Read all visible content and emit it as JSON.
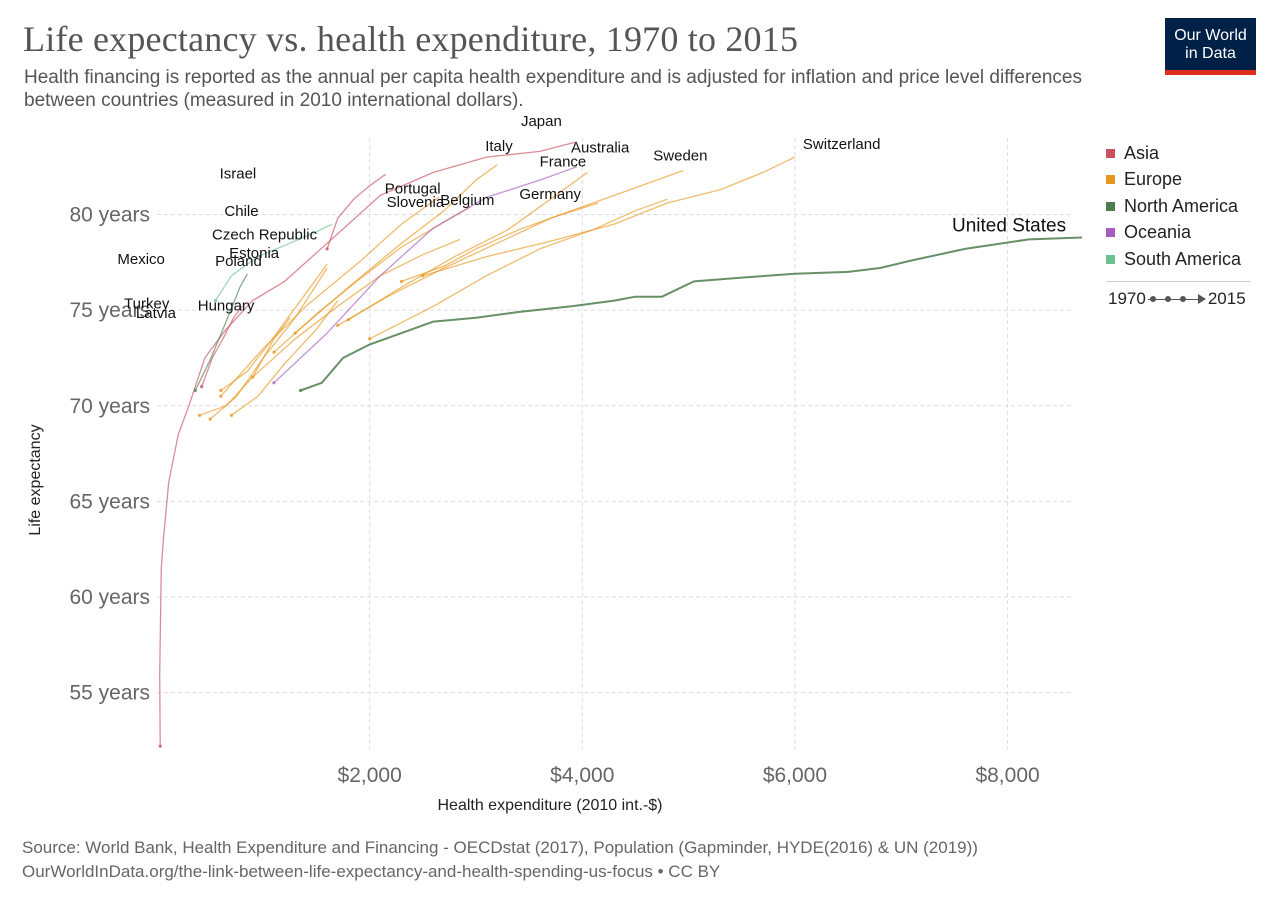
{
  "header": {
    "title": "Life expectancy vs. health expenditure, 1970 to 2015",
    "subtitle": "Health financing is reported as the annual per capita health expenditure and is adjusted for inflation and price level differences between countries (measured in 2010 international dollars).",
    "logo_line1": "Our World",
    "logo_line2": "in Data"
  },
  "legend": {
    "items": [
      {
        "label": "Asia",
        "color": "#c8505f"
      },
      {
        "label": "Europe",
        "color": "#e8961e"
      },
      {
        "label": "North America",
        "color": "#4e7d4e"
      },
      {
        "label": "Oceania",
        "color": "#a65cc0"
      },
      {
        "label": "South America",
        "color": "#6cc28f"
      }
    ],
    "timeline_start": "1970",
    "timeline_end": "2015"
  },
  "footer": {
    "source_line": "Source: World Bank, Health Expenditure and Financing - OECDstat (2017), Population (Gapminder, HYDE(2016) & UN (2019))",
    "url_line": "OurWorldInData.org/the-link-between-life-expectancy-and-health-spending-us-focus • CC BY"
  },
  "chart_data": {
    "type": "line",
    "xlabel": "Health expenditure (2010 int.-$)",
    "ylabel": "Life expectancy",
    "xlim": [
      0,
      8700
    ],
    "ylim": [
      52,
      84
    ],
    "x_ticks": [
      {
        "value": 2000,
        "label": "$2,000"
      },
      {
        "value": 4000,
        "label": "$4,000"
      },
      {
        "value": 6000,
        "label": "$6,000"
      },
      {
        "value": 8000,
        "label": "$8,000"
      }
    ],
    "y_ticks": [
      {
        "value": 55,
        "label": "55 years"
      },
      {
        "value": 60,
        "label": "60 years"
      },
      {
        "value": 65,
        "label": "65 years"
      },
      {
        "value": 70,
        "label": "70 years"
      },
      {
        "value": 75,
        "label": "75 years"
      },
      {
        "value": 80,
        "label": "80 years"
      }
    ],
    "grid": true,
    "legend_position": "right",
    "series": [
      {
        "name": "Japan",
        "region": "Asia",
        "label": "Japan",
        "points": [
          [
            30,
            52.2
          ],
          [
            25,
            56
          ],
          [
            40,
            61.5
          ],
          [
            60,
            63
          ],
          [
            110,
            66
          ],
          [
            200,
            68.5
          ],
          [
            300,
            70
          ],
          [
            450,
            72.5
          ],
          [
            650,
            74
          ],
          [
            900,
            75.5
          ],
          [
            1200,
            76.5
          ],
          [
            1500,
            78
          ],
          [
            1800,
            79.5
          ],
          [
            2100,
            81
          ],
          [
            2600,
            82.2
          ],
          [
            3100,
            83
          ],
          [
            3600,
            83.3
          ],
          [
            3950,
            83.8
          ]
        ]
      },
      {
        "name": "Israel",
        "region": "Asia",
        "label": "Israel",
        "points": [
          [
            1600,
            78.2
          ],
          [
            1700,
            79.8
          ],
          [
            1850,
            80.8
          ],
          [
            2000,
            81.5
          ],
          [
            2150,
            82.1
          ]
        ]
      },
      {
        "name": "Turkey",
        "region": "Asia",
        "label": "Turkey",
        "points": [
          [
            420,
            71
          ],
          [
            520,
            72.5
          ],
          [
            620,
            73.5
          ],
          [
            720,
            74.6
          ],
          [
            800,
            75.2
          ]
        ]
      },
      {
        "name": "Switzerland",
        "region": "Europe",
        "label": "Switzerland",
        "points": [
          [
            2500,
            76.8
          ],
          [
            3100,
            77.8
          ],
          [
            3700,
            78.6
          ],
          [
            4300,
            79.5
          ],
          [
            4800,
            80.6
          ],
          [
            5300,
            81.3
          ],
          [
            5700,
            82.2
          ],
          [
            6000,
            83
          ]
        ]
      },
      {
        "name": "Sweden",
        "region": "Europe",
        "label": "Sweden",
        "points": [
          [
            2300,
            76.5
          ],
          [
            2700,
            77.3
          ],
          [
            3000,
            78.2
          ],
          [
            3400,
            79.2
          ],
          [
            3800,
            80
          ],
          [
            4300,
            81
          ],
          [
            4700,
            81.8
          ],
          [
            4950,
            82.3
          ]
        ]
      },
      {
        "name": "Germany",
        "region": "Europe",
        "label": "Germany",
        "points": [
          [
            2000,
            73.5
          ],
          [
            2600,
            75.2
          ],
          [
            3100,
            76.8
          ],
          [
            3600,
            78.2
          ],
          [
            4100,
            79.2
          ],
          [
            4500,
            80.2
          ],
          [
            4800,
            80.8
          ]
        ]
      },
      {
        "name": "France",
        "region": "Europe",
        "label": "France",
        "points": [
          [
            1800,
            74.5
          ],
          [
            2300,
            76.2
          ],
          [
            2800,
            77.8
          ],
          [
            3300,
            79.2
          ],
          [
            3700,
            80.8
          ],
          [
            4050,
            82.2
          ]
        ]
      },
      {
        "name": "Belgium",
        "region": "Europe",
        "label": "Belgium",
        "points": [
          [
            1700,
            74.2
          ],
          [
            2200,
            75.8
          ],
          [
            2700,
            77.2
          ],
          [
            3200,
            78.5
          ],
          [
            3700,
            79.8
          ],
          [
            4150,
            80.6
          ]
        ]
      },
      {
        "name": "Italy",
        "region": "Europe",
        "label": "Italy",
        "points": [
          [
            1300,
            73.8
          ],
          [
            1800,
            76.2
          ],
          [
            2300,
            78.5
          ],
          [
            2700,
            80.2
          ],
          [
            3000,
            81.8
          ],
          [
            3200,
            82.6
          ]
        ]
      },
      {
        "name": "Portugal",
        "region": "Europe",
        "label": "Portugal",
        "points": [
          [
            600,
            70.5
          ],
          [
            1000,
            73
          ],
          [
            1400,
            75.2
          ],
          [
            1900,
            77.5
          ],
          [
            2300,
            79.5
          ],
          [
            2650,
            80.9
          ]
        ]
      },
      {
        "name": "Slovenia",
        "region": "Europe",
        "label": "Slovenia",
        "points": [
          [
            1100,
            72.8
          ],
          [
            1500,
            74.8
          ],
          [
            1900,
            76.6
          ],
          [
            2300,
            78.3
          ],
          [
            2700,
            79.6
          ],
          [
            2950,
            80.4
          ]
        ]
      },
      {
        "name": "Czech Republic",
        "region": "Europe",
        "label": "Czech Republic",
        "points": [
          [
            900,
            71.5
          ],
          [
            1300,
            73.5
          ],
          [
            1700,
            75.2
          ],
          [
            2100,
            76.8
          ],
          [
            2500,
            77.9
          ],
          [
            2850,
            78.7
          ]
        ]
      },
      {
        "name": "Estonia",
        "region": "Europe",
        "label": "Estonia",
        "points": [
          [
            500,
            69.3
          ],
          [
            750,
            70.5
          ],
          [
            1000,
            72.5
          ],
          [
            1300,
            74.6
          ],
          [
            1600,
            77.2
          ]
        ]
      },
      {
        "name": "Poland",
        "region": "Europe",
        "label": "Poland",
        "points": [
          [
            600,
            70.8
          ],
          [
            850,
            71.8
          ],
          [
            1100,
            73.6
          ],
          [
            1350,
            75.5
          ],
          [
            1600,
            77.4
          ]
        ]
      },
      {
        "name": "Latvia",
        "region": "Europe",
        "label": "Latvia",
        "points": [
          [
            400,
            69.5
          ],
          [
            650,
            70
          ],
          [
            900,
            71.5
          ],
          [
            1100,
            73.5
          ],
          [
            1250,
            74.6
          ]
        ]
      },
      {
        "name": "Hungary",
        "region": "Europe",
        "label": "Hungary",
        "points": [
          [
            700,
            69.5
          ],
          [
            950,
            70.5
          ],
          [
            1200,
            72.2
          ],
          [
            1500,
            74
          ],
          [
            1700,
            75.5
          ]
        ]
      },
      {
        "name": "Chile",
        "region": "South America",
        "label": "Chile",
        "points": [
          [
            550,
            75.5
          ],
          [
            700,
            76.8
          ],
          [
            950,
            77.8
          ],
          [
            1250,
            78.5
          ],
          [
            1500,
            79.1
          ],
          [
            1650,
            79.5
          ]
        ]
      },
      {
        "name": "Mexico",
        "region": "North America",
        "label": "Mexico",
        "points": [
          [
            360,
            70.8
          ],
          [
            500,
            72.4
          ],
          [
            650,
            74.4
          ],
          [
            780,
            76.2
          ],
          [
            850,
            76.9
          ]
        ]
      },
      {
        "name": "Australia",
        "region": "Oceania",
        "label": "Australia",
        "points": [
          [
            1100,
            71.2
          ],
          [
            1600,
            73.8
          ],
          [
            2100,
            76.8
          ],
          [
            2600,
            79.3
          ],
          [
            3100,
            80.9
          ],
          [
            3600,
            81.8
          ],
          [
            3950,
            82.5
          ]
        ]
      },
      {
        "name": "United States",
        "region": "North America",
        "label": "United States",
        "points": [
          [
            1350,
            70.8
          ],
          [
            1550,
            71.2
          ],
          [
            1750,
            72.5
          ],
          [
            2000,
            73.2
          ],
          [
            2300,
            73.8
          ],
          [
            2600,
            74.4
          ],
          [
            3000,
            74.6
          ],
          [
            3400,
            74.9
          ],
          [
            3900,
            75.2
          ],
          [
            4300,
            75.5
          ],
          [
            4500,
            75.7
          ],
          [
            4750,
            75.7
          ],
          [
            5050,
            76.5
          ],
          [
            5500,
            76.7
          ],
          [
            6000,
            76.9
          ],
          [
            6500,
            77
          ],
          [
            6800,
            77.2
          ],
          [
            7100,
            77.6
          ],
          [
            7600,
            78.2
          ],
          [
            8200,
            78.7
          ],
          [
            8700,
            78.8
          ]
        ]
      }
    ]
  }
}
